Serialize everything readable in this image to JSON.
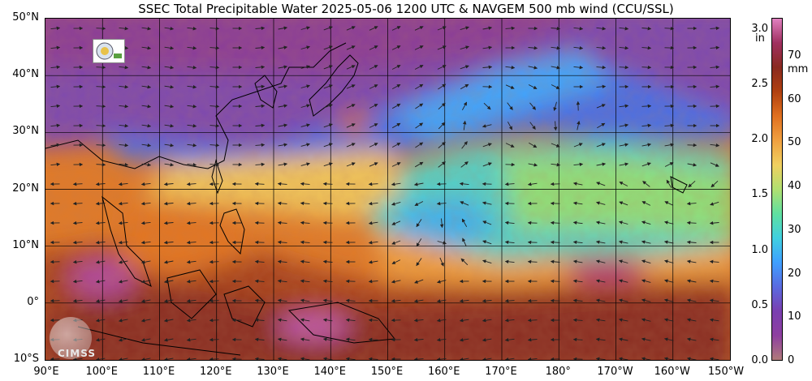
{
  "title": "SSEC Total Precipitable Water  2025-05-06 1200 UTC & NAVGEM 500 mb wind (CCU/SSL)",
  "lat_labels": [
    "50°N",
    "40°N",
    "30°N",
    "20°N",
    "10°N",
    "0°",
    "10°S"
  ],
  "lon_labels": [
    "90°E",
    "100°E",
    "110°E",
    "120°E",
    "130°E",
    "140°E",
    "150°E",
    "160°E",
    "170°E",
    "180°",
    "170°W",
    "160°W",
    "150°W"
  ],
  "colorbar": {
    "inch_unit": "in",
    "mm_unit": "mm",
    "inch_ticks": [
      "3.0",
      "2.5",
      "2.0",
      "1.5",
      "1.0",
      "0.5",
      "0.0"
    ],
    "mm_ticks": [
      "70",
      "60",
      "50",
      "40",
      "30",
      "20",
      "10",
      "0"
    ],
    "colors": [
      "#b07a7a",
      "#8e3fa0",
      "#7a3fb0",
      "#5a6ae0",
      "#3fa0ff",
      "#40d0e0",
      "#60e0a0",
      "#b0e070",
      "#f0d060",
      "#f0a040",
      "#e07020",
      "#b04010",
      "#8a2a20",
      "#a03060",
      "#e080c0"
    ]
  },
  "logos": {
    "cimss_text": "CIMSS"
  }
}
